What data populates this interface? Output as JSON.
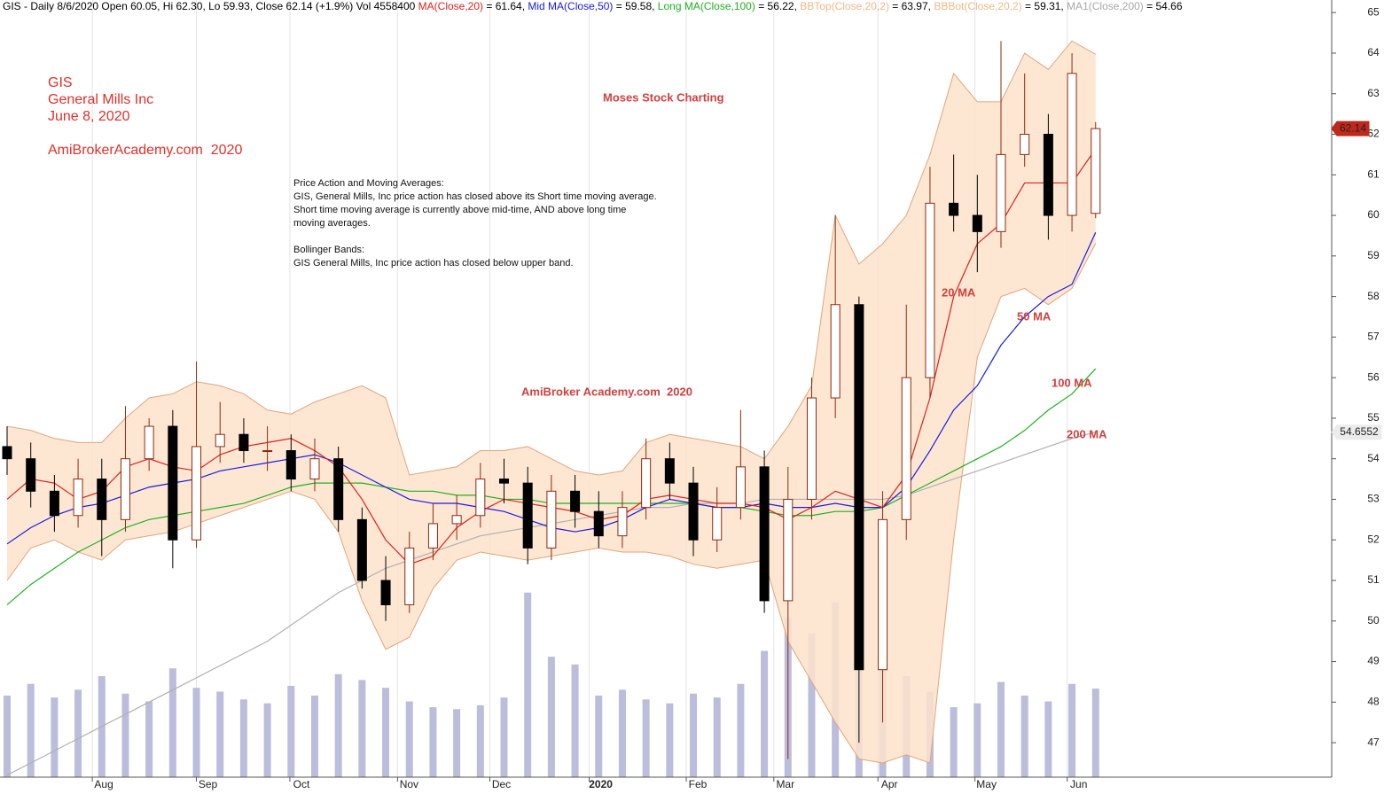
{
  "chart_data": {
    "type": "candlestick",
    "header": [
      {
        "text": "GIS - Daily 8/6/2020 Open 60.05, Hi 62.30, Lo 59.93, Close 62.14 (+1.9%) Vol 4558400 ",
        "color": "#000000"
      },
      {
        "text": "MA(Close,20)",
        "color": "#e02020"
      },
      {
        "text": " = 61.64, ",
        "color": "#000000"
      },
      {
        "text": "Mid MA(Close,50)",
        "color": "#1a1ae0"
      },
      {
        "text": " = 59.58, ",
        "color": "#000000"
      },
      {
        "text": "Long MA(Close,100)",
        "color": "#20b020"
      },
      {
        "text": " = 56.22, ",
        "color": "#000000"
      },
      {
        "text": "BBTop(Close,20,2)",
        "color": "#f0b888"
      },
      {
        "text": " = 63.97, ",
        "color": "#000000"
      },
      {
        "text": "BBBot(Close,20,2)",
        "color": "#f0b888"
      },
      {
        "text": " = 59.31, ",
        "color": "#000000"
      },
      {
        "text": "MA1(Close,200)",
        "color": "#a8a8a8"
      },
      {
        "text": " = 54.66",
        "color": "#000000"
      }
    ],
    "title_block": [
      "GIS",
      "General Mills Inc",
      "June 8, 2020",
      "AmiBrokerAcademy.com  2020"
    ],
    "watermark": "Moses Stock Charting",
    "commentary": [
      "Price Action and Moving Averages:",
      "GIS, General Mills, Inc price action has closed above its Short time moving average.",
      "Short time moving average is currently above mid-time, AND above long time",
      "moving averages.",
      "",
      "Bollinger Bands:",
      "GIS General Mills, Inc price action has closed below upper band."
    ],
    "annotations": [
      "AmiBroker Academy.com  2020",
      "20 MA",
      "50 MA",
      "100 MA",
      "200 MA"
    ],
    "last_price_label": 62.14,
    "ma200_label": 54.6552,
    "xlim": [
      -0.3,
      55.9
    ],
    "xticks": [
      {
        "value": 3.6,
        "label": "Aug"
      },
      {
        "value": 8.0,
        "label": "Sep"
      },
      {
        "value": 11.95,
        "label": "Oct"
      },
      {
        "value": 16.5,
        "label": "Nov"
      },
      {
        "value": 20.4,
        "label": "Dec"
      },
      {
        "value": 24.6,
        "label": "2020"
      },
      {
        "value": 28.7,
        "label": "Feb"
      },
      {
        "value": 32.4,
        "label": "Mar"
      },
      {
        "value": 36.8,
        "label": "Apr"
      },
      {
        "value": 40.9,
        "label": "May"
      },
      {
        "value": 44.8,
        "label": "Jun"
      }
    ],
    "ylim": [
      46.15,
      65.31
    ],
    "yticks": [
      47,
      48,
      49,
      50,
      51,
      52,
      53,
      54,
      55,
      56,
      57,
      58,
      59,
      60,
      61,
      62,
      63,
      64,
      65
    ],
    "vlim": [
      0,
      40000000
    ],
    "up_color": "#ffffff",
    "down_color": "#000000",
    "outline_color": "#8b2a10",
    "band_fill": "#fde3cb",
    "band_edge": "#e2a47c",
    "volume_color": "#bcbcdc",
    "open": [
      54.3,
      54.0,
      53.2,
      52.6,
      53.5,
      52.5,
      54.0,
      54.8,
      52.0,
      54.3,
      54.6,
      54.2,
      54.2,
      53.5,
      54.0,
      52.5,
      51.0,
      50.4,
      51.8,
      52.4,
      52.6,
      53.5,
      53.4,
      51.8,
      53.2,
      52.7,
      52.1,
      52.8,
      54.0,
      53.4,
      52.0,
      52.8,
      53.8,
      50.5,
      53.0,
      55.5,
      57.8,
      48.8,
      52.5,
      56.0,
      60.3,
      60.0,
      59.6,
      61.5,
      62.0,
      60.0,
      60.05
    ],
    "high": [
      54.8,
      54.4,
      53.6,
      54.0,
      54.0,
      55.3,
      55.0,
      55.2,
      56.4,
      55.4,
      55.0,
      54.8,
      54.6,
      54.5,
      54.3,
      52.8,
      51.6,
      52.2,
      52.9,
      53.1,
      53.9,
      54.0,
      53.8,
      53.6,
      53.6,
      53.2,
      53.2,
      54.5,
      54.4,
      53.8,
      53.3,
      55.2,
      54.2,
      53.8,
      56.0,
      60.0,
      58.0,
      53.2,
      57.8,
      61.2,
      61.5,
      61.0,
      64.3,
      63.5,
      62.5,
      64.0,
      62.3
    ],
    "low": [
      53.6,
      52.8,
      52.2,
      52.3,
      51.6,
      52.2,
      53.7,
      51.3,
      51.8,
      53.9,
      53.9,
      53.7,
      53.2,
      53.2,
      52.2,
      50.8,
      50.0,
      50.2,
      51.5,
      52.0,
      52.3,
      52.9,
      51.4,
      51.5,
      52.3,
      51.8,
      51.8,
      52.5,
      53.0,
      51.6,
      51.7,
      52.5,
      50.2,
      46.6,
      52.5,
      55.0,
      47.0,
      47.5,
      52.0,
      55.5,
      59.6,
      58.6,
      59.2,
      61.2,
      59.4,
      59.6,
      59.93
    ],
    "close": [
      54.0,
      53.2,
      52.6,
      53.5,
      52.5,
      54.0,
      54.8,
      52.0,
      54.3,
      54.6,
      54.2,
      54.2,
      53.5,
      54.0,
      52.5,
      51.0,
      50.4,
      51.8,
      52.4,
      52.6,
      53.5,
      53.4,
      51.8,
      53.2,
      52.7,
      52.1,
      52.8,
      54.0,
      53.4,
      52.0,
      52.8,
      53.8,
      50.5,
      53.0,
      55.5,
      57.8,
      48.8,
      52.5,
      56.0,
      60.3,
      60.0,
      59.6,
      61.5,
      62.0,
      60.0,
      63.5,
      62.14
    ],
    "volume": [
      4200000,
      4800000,
      4100000,
      4500000,
      5200000,
      4300000,
      3900000,
      5600000,
      4600000,
      4400000,
      4000000,
      3800000,
      4700000,
      4200000,
      5300000,
      5000000,
      4600000,
      3900000,
      3600000,
      3500000,
      3700000,
      4100000,
      9500000,
      6200000,
      5800000,
      4200000,
      4500000,
      4000000,
      3800000,
      4300000,
      4100000,
      4800000,
      6500000,
      8200000,
      7400000,
      9000000,
      7800000,
      6600000,
      5200000,
      4400000,
      3600000,
      3800000,
      4900000,
      4200000,
      3900000,
      4800000,
      4558400
    ],
    "bands": {
      "top": [
        54.8,
        54.7,
        54.5,
        54.4,
        54.4,
        55.0,
        55.5,
        55.6,
        55.9,
        55.8,
        55.6,
        55.2,
        55.1,
        55.4,
        55.6,
        55.8,
        55.5,
        53.6,
        53.7,
        53.8,
        54.2,
        54.2,
        54.3,
        54.0,
        53.7,
        53.6,
        53.7,
        54.4,
        54.6,
        54.5,
        54.4,
        54.3,
        54.0,
        54.8,
        55.8,
        60.0,
        58.8,
        59.3,
        60.0,
        61.5,
        63.5,
        62.8,
        62.8,
        64.0,
        63.6,
        64.3,
        63.97
      ],
      "bottom": [
        51.0,
        51.8,
        52.0,
        51.7,
        51.5,
        52.0,
        52.1,
        52.2,
        52.4,
        52.6,
        52.8,
        53.0,
        53.2,
        53.0,
        52.2,
        50.5,
        49.3,
        49.6,
        50.8,
        51.5,
        51.7,
        51.6,
        51.5,
        51.6,
        51.7,
        51.8,
        51.7,
        51.7,
        51.6,
        51.4,
        51.3,
        51.4,
        51.5,
        49.5,
        48.5,
        47.5,
        46.6,
        46.5,
        46.7,
        46.5,
        52.0,
        56.5,
        58.0,
        58.2,
        57.8,
        58.2,
        59.31
      ]
    },
    "series": [
      {
        "name": "MA(Close,200)",
        "color": "#b0b0b0",
        "values": [
          46.2,
          46.5,
          46.8,
          47.1,
          47.4,
          47.7,
          48.0,
          48.3,
          48.6,
          48.9,
          49.2,
          49.5,
          49.9,
          50.3,
          50.7,
          51.0,
          51.3,
          51.5,
          51.7,
          51.9,
          52.1,
          52.2,
          52.3,
          52.4,
          52.5,
          52.6,
          52.7,
          52.8,
          52.8,
          52.9,
          52.9,
          52.9,
          53.0,
          53.0,
          53.0,
          53.0,
          53.0,
          53.0,
          53.1,
          53.3,
          53.5,
          53.7,
          53.9,
          54.1,
          54.3,
          54.5,
          54.66
        ]
      },
      {
        "name": "MA(Close,100)",
        "color": "#20b020",
        "values": [
          50.4,
          50.9,
          51.3,
          51.7,
          52.0,
          52.3,
          52.5,
          52.6,
          52.7,
          52.8,
          52.9,
          53.1,
          53.3,
          53.4,
          53.4,
          53.4,
          53.3,
          53.2,
          53.2,
          53.1,
          53.1,
          53.0,
          53.0,
          52.9,
          52.9,
          52.9,
          52.9,
          52.9,
          52.9,
          52.9,
          52.8,
          52.8,
          52.7,
          52.6,
          52.6,
          52.7,
          52.7,
          52.8,
          53.1,
          53.4,
          53.7,
          54.0,
          54.3,
          54.7,
          55.2,
          55.6,
          56.22
        ]
      },
      {
        "name": "MA(Close,50)",
        "color": "#1a1ae0",
        "values": [
          51.9,
          52.3,
          52.6,
          52.8,
          52.9,
          53.1,
          53.3,
          53.4,
          53.5,
          53.7,
          53.8,
          53.9,
          54.0,
          54.1,
          53.9,
          53.6,
          53.3,
          53.0,
          52.9,
          52.9,
          52.8,
          52.7,
          52.5,
          52.3,
          52.2,
          52.3,
          52.5,
          52.8,
          53.0,
          52.9,
          52.8,
          52.8,
          52.9,
          52.8,
          52.8,
          52.9,
          52.8,
          52.8,
          53.3,
          54.2,
          55.2,
          55.8,
          56.8,
          57.5,
          58.0,
          58.3,
          59.58
        ]
      },
      {
        "name": "MA(Close,20)",
        "color": "#e02020",
        "values": [
          53.0,
          53.5,
          53.4,
          53.0,
          53.2,
          53.8,
          54.0,
          53.8,
          53.7,
          54.1,
          54.3,
          54.4,
          54.5,
          54.2,
          53.8,
          53.0,
          52.0,
          51.4,
          51.6,
          52.3,
          52.7,
          53.0,
          52.9,
          52.8,
          52.7,
          52.5,
          52.6,
          53.0,
          53.1,
          53.0,
          52.9,
          52.9,
          52.8,
          52.5,
          52.8,
          53.2,
          53.0,
          52.8,
          53.6,
          55.5,
          58.0,
          59.3,
          59.8,
          60.8,
          60.8,
          60.8,
          61.64
        ]
      }
    ]
  }
}
